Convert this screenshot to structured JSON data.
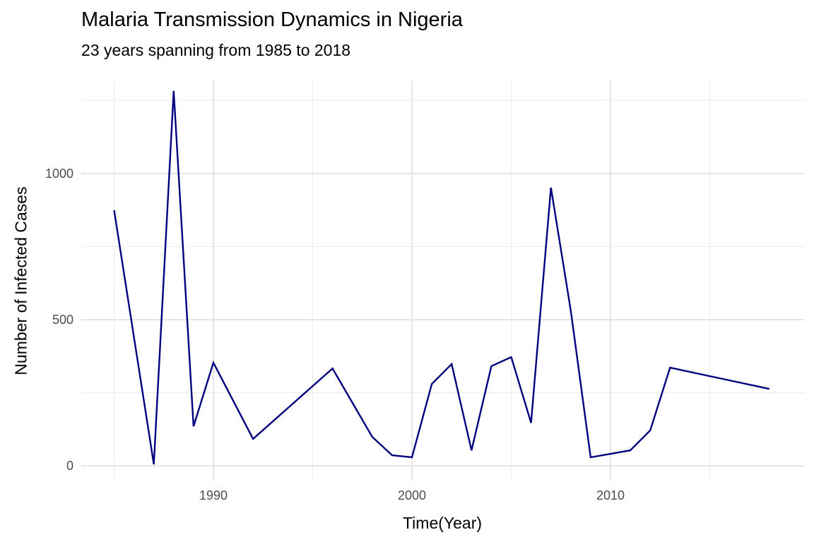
{
  "chart_data": {
    "type": "line",
    "title": "Malaria Transmission Dynamics in Nigeria",
    "subtitle": "23 years spanning from 1985 to 2018",
    "xlabel": "Time(Year)",
    "ylabel": "Number of Infected Cases",
    "xlim": [
      1983.5,
      2019.5
    ],
    "ylim": [
      -60,
      1350
    ],
    "x_ticks": [
      1990,
      2000,
      2010
    ],
    "y_ticks": [
      0,
      500,
      1000
    ],
    "grid": true,
    "line_color": "#000080",
    "x": [
      1985,
      1987,
      1988,
      1989,
      1990,
      1992,
      1996,
      1998,
      1999,
      2000,
      2001,
      2002,
      2003,
      2004,
      2005,
      2006,
      2007,
      2008,
      2009,
      2011,
      2012,
      2013,
      2018
    ],
    "values": [
      875,
      5,
      1283,
      135,
      353,
      92,
      333,
      99,
      36,
      29,
      280,
      348,
      53,
      341,
      372,
      147,
      952,
      531,
      29,
      53,
      121,
      336,
      263
    ]
  }
}
